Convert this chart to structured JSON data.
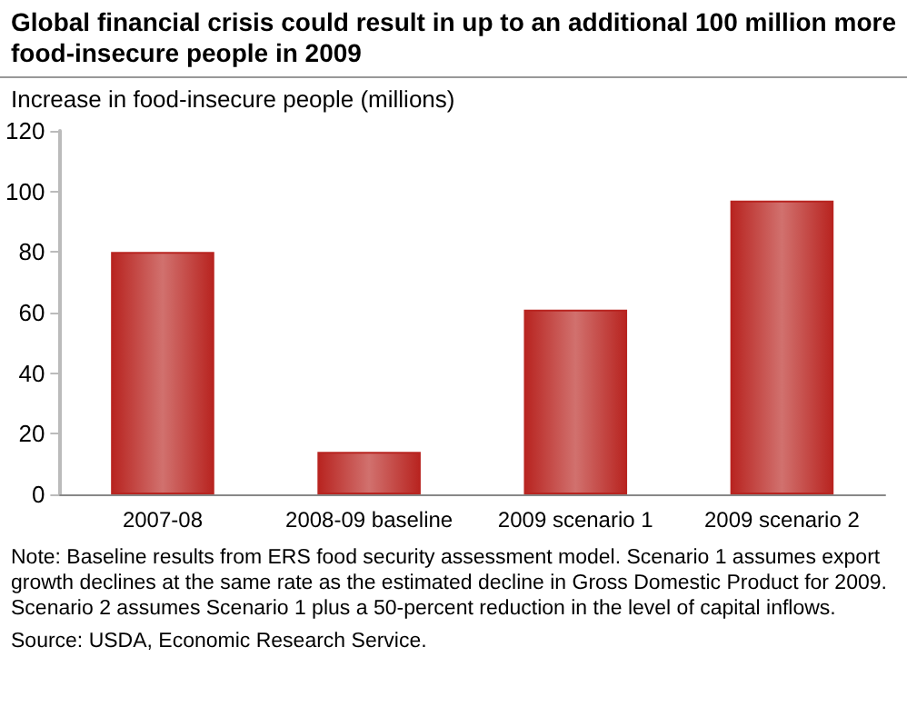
{
  "chart_data": {
    "type": "bar",
    "title": "Global financial crisis could result in up to an additional 100 million more food-insecure people in 2009",
    "ylabel": "Increase in food-insecure people (millions)",
    "categories": [
      "2007-08",
      "2008-09 baseline",
      "2009 scenario 1",
      "2009 scenario 2"
    ],
    "values": [
      80,
      14,
      61,
      97
    ],
    "color": "#b82420",
    "ylim": [
      0,
      120
    ],
    "yticks": [
      0,
      20,
      40,
      60,
      80,
      100,
      120
    ],
    "grid": false,
    "annotations": [
      "Note: Baseline results from ERS food security assessment model. Scenario 1 assumes export growth declines at the same rate as the estimated decline in Gross Domestic Product for 2009. Scenario 2 assumes Scenario 1 plus a 50-percent reduction in the level of capital inflows.",
      "Source: USDA, Economic Research Service."
    ]
  }
}
